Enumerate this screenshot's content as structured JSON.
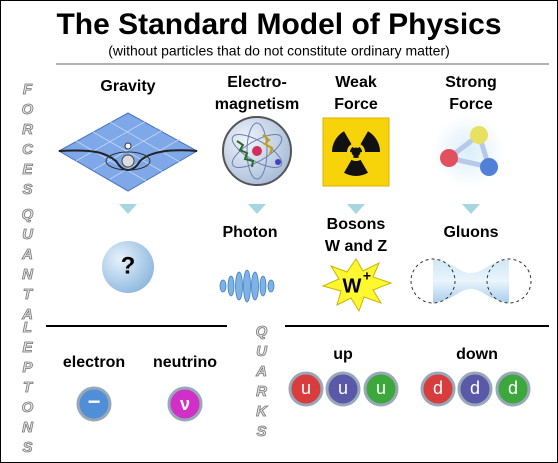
{
  "title": "The Standard Model of Physics",
  "subtitle": "(without particles that do not constitute ordinary matter)",
  "side_labels": {
    "forces": "FORCES",
    "quanta": "QUANTA",
    "leptons": "LEPTONS",
    "quarks": "QUARKS"
  },
  "forces": [
    [
      "Gravity"
    ],
    [
      "Electro-",
      "magnetism"
    ],
    [
      "Weak",
      "Force"
    ],
    [
      "Strong",
      "Force"
    ]
  ],
  "quanta": {
    "graviton_symbol": "?",
    "labels": [
      [
        "Photon"
      ],
      [
        "Bosons",
        "W and Z"
      ],
      [
        "Gluons"
      ]
    ],
    "w_boson": {
      "symbol": "W",
      "charge": "+"
    }
  },
  "leptons": [
    {
      "name": "electron",
      "symbol": "−"
    },
    {
      "name": "neutrino",
      "symbol": "ν"
    }
  ],
  "quarks": [
    {
      "name": "up",
      "symbols": [
        "u",
        "u",
        "u"
      ]
    },
    {
      "name": "down",
      "symbols": [
        "d",
        "d",
        "d"
      ]
    }
  ]
}
